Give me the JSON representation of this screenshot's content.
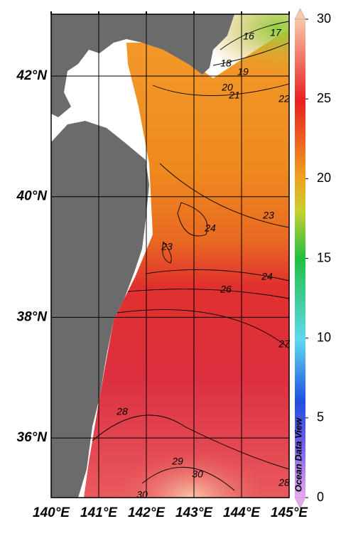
{
  "map": {
    "x_labels": [
      "140°E",
      "141°E",
      "142°E",
      "143°E",
      "144°E",
      "145°E"
    ],
    "y_labels": [
      "42°N",
      "40°N",
      "38°N",
      "36°N"
    ],
    "colorbar_ticks": [
      0,
      5,
      10,
      15,
      20,
      25,
      30
    ],
    "contour_labels": [
      "16",
      "17",
      "18",
      "19",
      "20",
      "21",
      "22",
      "23",
      "24",
      "23",
      "24",
      "26",
      "27",
      "28",
      "29",
      "30",
      "30",
      "28"
    ],
    "watermark": "Ocean Data View"
  }
}
